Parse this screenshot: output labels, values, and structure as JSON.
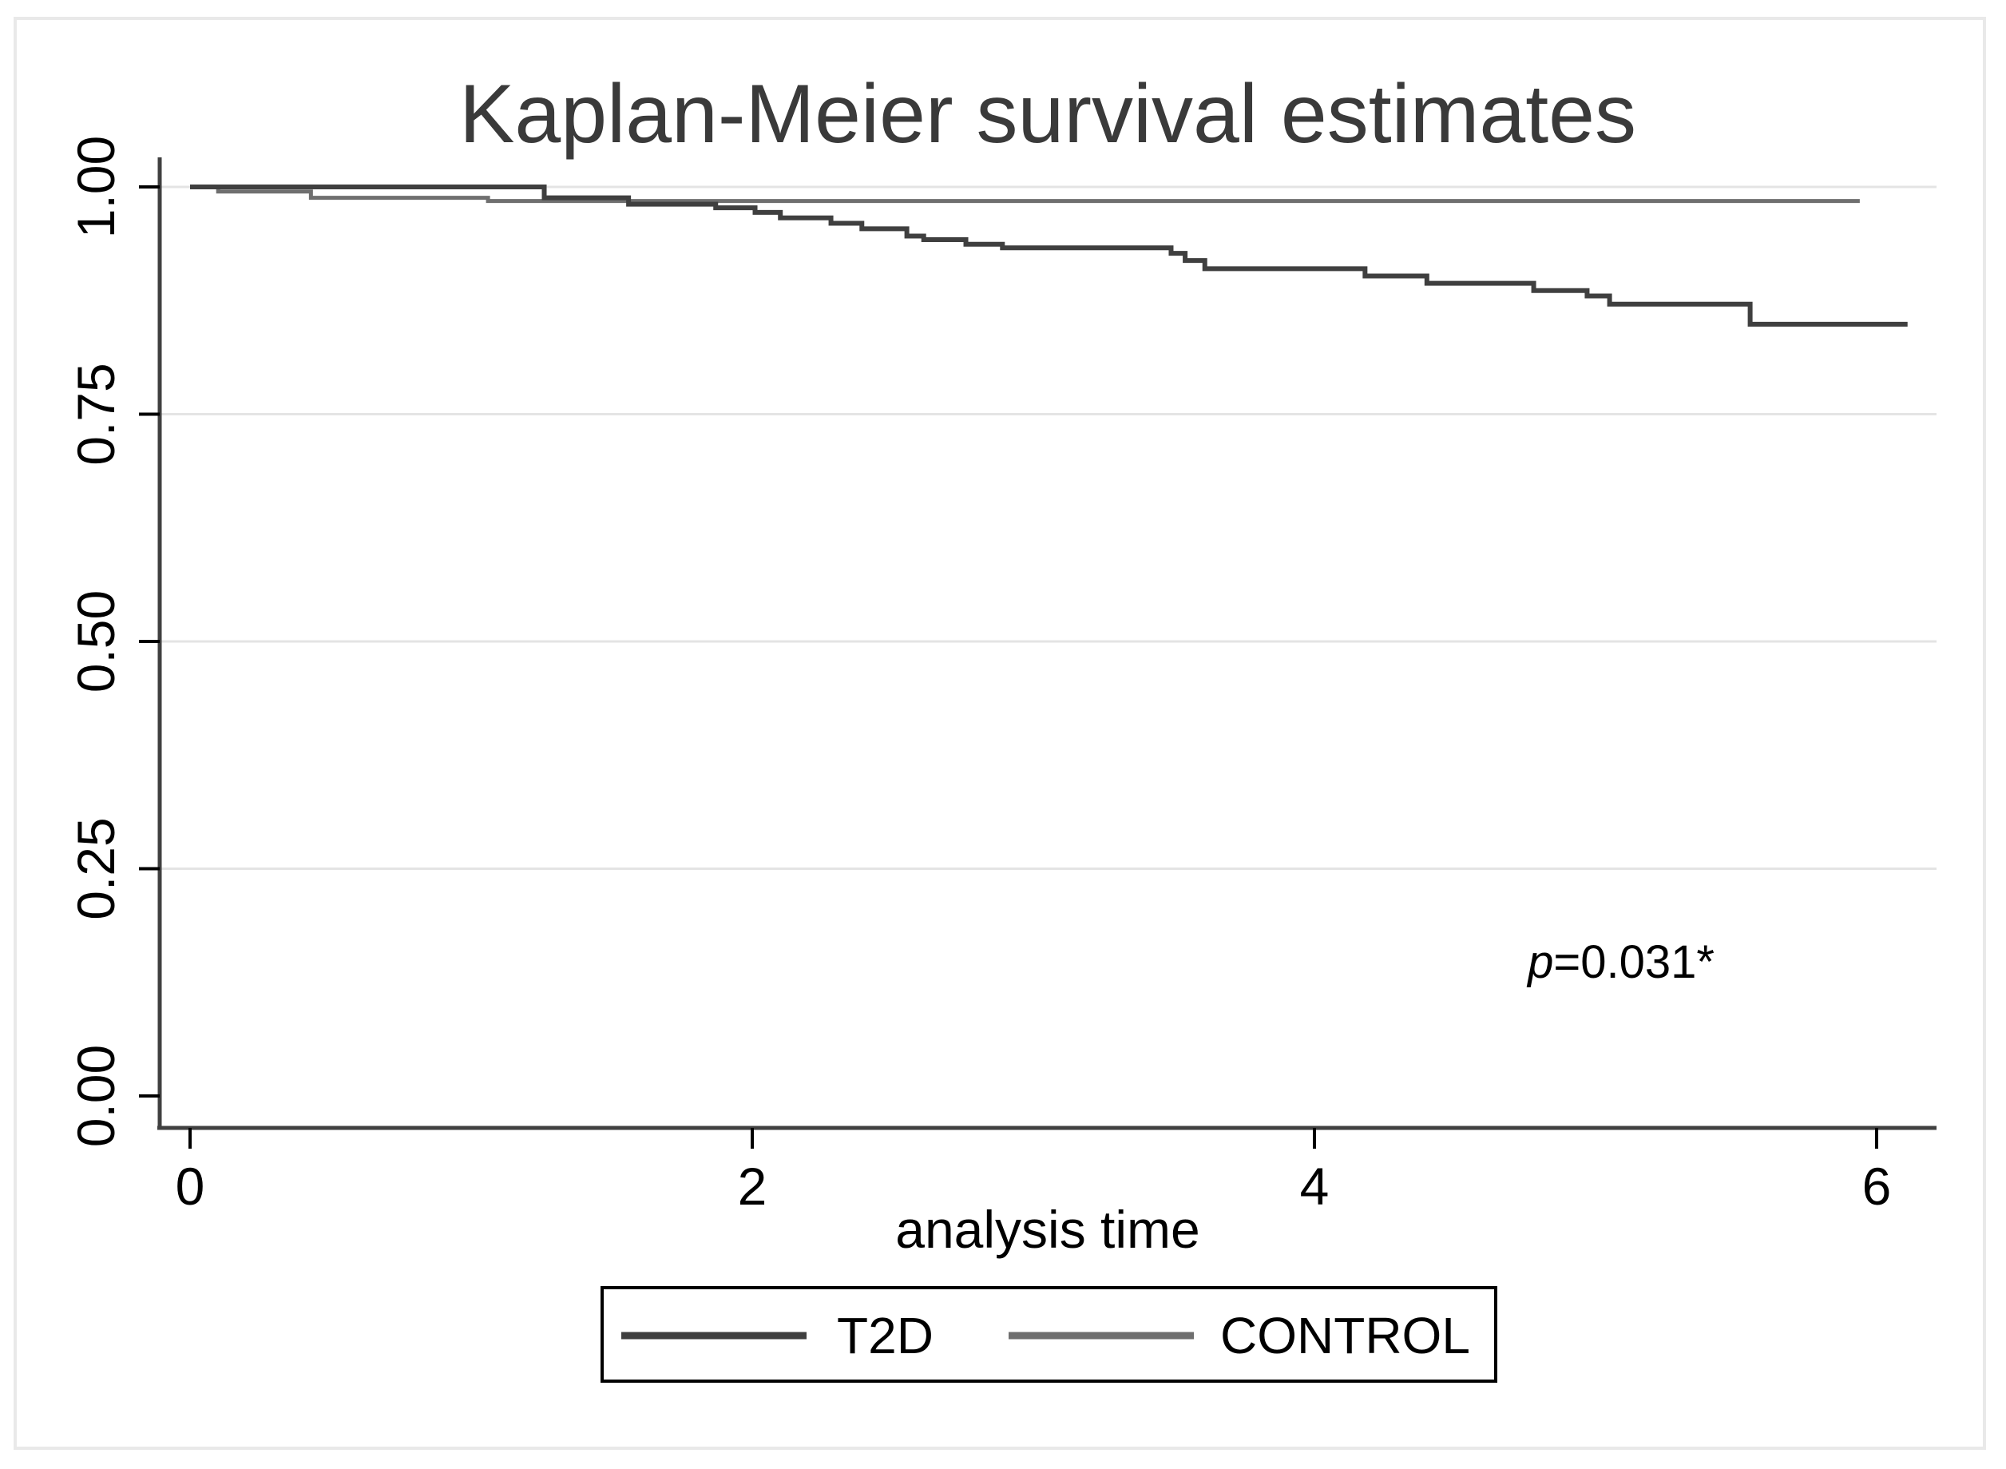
{
  "figure": {
    "background": "#ffffff",
    "border_color": "#e9e9e9"
  },
  "chart_data": {
    "type": "line",
    "subtype": "kaplan-meier-step-survival",
    "title": "Kaplan-Meier survival estimates",
    "xlabel": "analysis time",
    "ylabel": "",
    "xlim": [
      -0.11,
      6.21
    ],
    "ylim": [
      0.0,
      1.03
    ],
    "x_ticks": [
      {
        "v": 0,
        "label": "0"
      },
      {
        "v": 2,
        "label": "2"
      },
      {
        "v": 4,
        "label": "4"
      },
      {
        "v": 6,
        "label": "6"
      }
    ],
    "y_ticks": [
      {
        "v": 0.0,
        "label": "0.00"
      },
      {
        "v": 0.25,
        "label": "0.25"
      },
      {
        "v": 0.5,
        "label": "0.50"
      },
      {
        "v": 0.75,
        "label": "0.75"
      },
      {
        "v": 1.0,
        "label": "1.00"
      }
    ],
    "grid_values": [
      0.25,
      0.5,
      0.75,
      1.0
    ],
    "grid_on": true,
    "grid_color": "#e4e4e4",
    "axis_color": "#404040",
    "tick_color": "#000000",
    "title_color": "#3a3a3a",
    "legend_position": "bottom-center",
    "annotation": {
      "prefix_italic": "p",
      "text": "=0.031*"
    },
    "series": [
      {
        "name": "T2D",
        "color": "#3f3f3f",
        "line_width": 6,
        "steps": [
          [
            0,
            1.0
          ],
          [
            1.26,
            0.988
          ],
          [
            1.56,
            0.981
          ],
          [
            1.87,
            0.977
          ],
          [
            2.01,
            0.972
          ],
          [
            2.1,
            0.966
          ],
          [
            2.28,
            0.96
          ],
          [
            2.39,
            0.954
          ],
          [
            2.55,
            0.946
          ],
          [
            2.61,
            0.942
          ],
          [
            2.76,
            0.937
          ],
          [
            2.89,
            0.933
          ],
          [
            3.49,
            0.927
          ],
          [
            3.54,
            0.919
          ],
          [
            3.61,
            0.91
          ],
          [
            4.18,
            0.902
          ],
          [
            4.4,
            0.894
          ],
          [
            4.78,
            0.886
          ],
          [
            4.97,
            0.88
          ],
          [
            5.05,
            0.871
          ],
          [
            5.55,
            0.849
          ]
        ],
        "end_x": 6.11
      },
      {
        "name": "CONTROL",
        "color": "#6f6f6f",
        "line_width": 5,
        "steps": [
          [
            0,
            1.0
          ],
          [
            0.1,
            0.995
          ],
          [
            0.43,
            0.988
          ],
          [
            1.06,
            0.9845
          ]
        ],
        "end_x": 5.94
      }
    ]
  }
}
